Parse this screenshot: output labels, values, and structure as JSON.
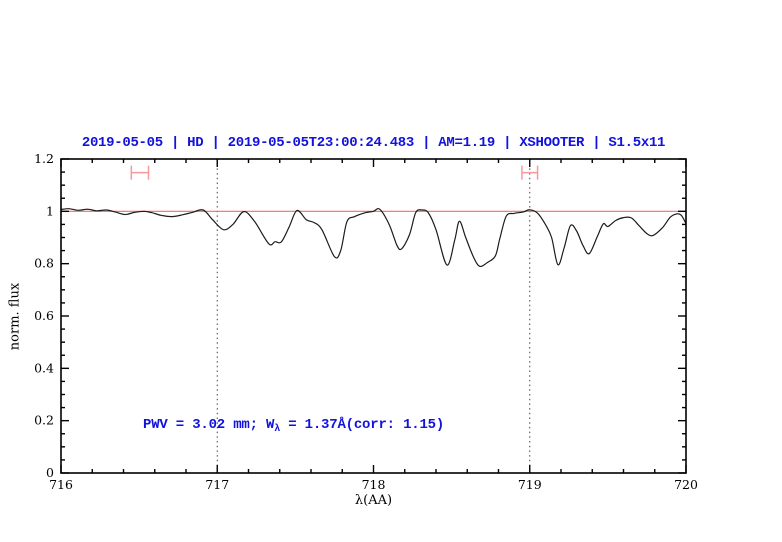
{
  "figure": {
    "title": "2019-05-05 | HD | 2019-05-05T23:00:24.483 | AM=1.19 | XSHOOTER | S1.5x11",
    "title_color": "#1212dd"
  },
  "annotation": {
    "prefix": "PWV = 3.02 mm; W",
    "sub": "λ",
    "suffix": " = 1.37Å(corr: 1.15)"
  },
  "chart_data": {
    "type": "line",
    "title": "2019-05-05 | HD | 2019-05-05T23:00:24.483 | AM=1.19 | XSHOOTER | S1.5x11",
    "xlabel": "λ(AA)",
    "ylabel": "norm. flux",
    "xlim": [
      716,
      720
    ],
    "ylim": [
      0,
      1.2
    ],
    "x_major_ticks": [
      716,
      717,
      718,
      719,
      720
    ],
    "x_minor_tick_step": 0.2,
    "y_major_ticks": [
      0,
      0.2,
      0.4,
      0.6,
      0.8,
      1,
      1.2
    ],
    "y_minor_tick_step": 0.05,
    "grid": false,
    "legend": "none",
    "dotted_lines_x": [
      717,
      719
    ],
    "reference_line": {
      "flux": 1.0,
      "color": "#f26b6b"
    },
    "markers": [
      {
        "label": "range-marker-1",
        "lambda_min": 716.45,
        "lambda_max": 716.56,
        "flux": 1.148,
        "color": "#f49a9a"
      },
      {
        "label": "range-marker-2",
        "lambda_min": 718.95,
        "lambda_max": 719.05,
        "flux": 1.148,
        "color": "#f49a9a"
      }
    ],
    "annotation_text": {
      "text": "PWV = 3.02 mm; Wλ = 1.37Å(corr: 1.15)",
      "lambda": 716.53,
      "flux": 0.17,
      "color": "#1212dd"
    },
    "series": [
      {
        "name": "normalized telluric spectrum",
        "color": "#1c1c1c",
        "points": [
          [
            716.0,
            1.007
          ],
          [
            716.05,
            1.01
          ],
          [
            716.11,
            1.004
          ],
          [
            716.17,
            1.008
          ],
          [
            716.23,
            1.002
          ],
          [
            716.29,
            1.005
          ],
          [
            716.35,
            0.997
          ],
          [
            716.41,
            0.988
          ],
          [
            716.47,
            0.996
          ],
          [
            716.53,
            1.0
          ],
          [
            716.58,
            0.995
          ],
          [
            716.64,
            0.985
          ],
          [
            716.71,
            0.98
          ],
          [
            716.78,
            0.987
          ],
          [
            716.84,
            0.996
          ],
          [
            716.91,
            1.005
          ],
          [
            716.97,
            0.968
          ],
          [
            717.04,
            0.93
          ],
          [
            717.1,
            0.95
          ],
          [
            717.17,
            0.999
          ],
          [
            717.24,
            0.96
          ],
          [
            717.33,
            0.876
          ],
          [
            717.37,
            0.884
          ],
          [
            717.41,
            0.883
          ],
          [
            717.46,
            0.94
          ],
          [
            717.51,
            1.003
          ],
          [
            717.57,
            0.968
          ],
          [
            717.62,
            0.957
          ],
          [
            717.67,
            0.93
          ],
          [
            717.75,
            0.827
          ],
          [
            717.79,
            0.85
          ],
          [
            717.83,
            0.96
          ],
          [
            717.88,
            0.98
          ],
          [
            717.95,
            0.995
          ],
          [
            718.0,
            1.0
          ],
          [
            718.04,
            1.008
          ],
          [
            718.1,
            0.95
          ],
          [
            718.15,
            0.87
          ],
          [
            718.18,
            0.857
          ],
          [
            718.23,
            0.91
          ],
          [
            718.27,
            0.995
          ],
          [
            718.31,
            1.005
          ],
          [
            718.35,
            0.995
          ],
          [
            718.4,
            0.93
          ],
          [
            718.47,
            0.795
          ],
          [
            718.52,
            0.89
          ],
          [
            718.55,
            0.962
          ],
          [
            718.59,
            0.9
          ],
          [
            718.64,
            0.825
          ],
          [
            718.68,
            0.79
          ],
          [
            718.73,
            0.805
          ],
          [
            718.78,
            0.83
          ],
          [
            718.81,
            0.9
          ],
          [
            718.85,
            0.982
          ],
          [
            718.9,
            0.992
          ],
          [
            718.96,
            0.998
          ],
          [
            719.0,
            1.006
          ],
          [
            719.05,
            0.993
          ],
          [
            719.1,
            0.95
          ],
          [
            719.14,
            0.9
          ],
          [
            719.18,
            0.796
          ],
          [
            719.22,
            0.86
          ],
          [
            719.26,
            0.945
          ],
          [
            719.3,
            0.925
          ],
          [
            719.34,
            0.87
          ],
          [
            719.38,
            0.838
          ],
          [
            719.43,
            0.9
          ],
          [
            719.47,
            0.952
          ],
          [
            719.5,
            0.942
          ],
          [
            719.55,
            0.965
          ],
          [
            719.6,
            0.976
          ],
          [
            719.65,
            0.975
          ],
          [
            719.7,
            0.945
          ],
          [
            719.75,
            0.915
          ],
          [
            719.79,
            0.908
          ],
          [
            719.85,
            0.938
          ],
          [
            719.9,
            0.978
          ],
          [
            719.94,
            0.99
          ],
          [
            719.97,
            0.985
          ],
          [
            720.0,
            0.953
          ]
        ]
      }
    ]
  }
}
